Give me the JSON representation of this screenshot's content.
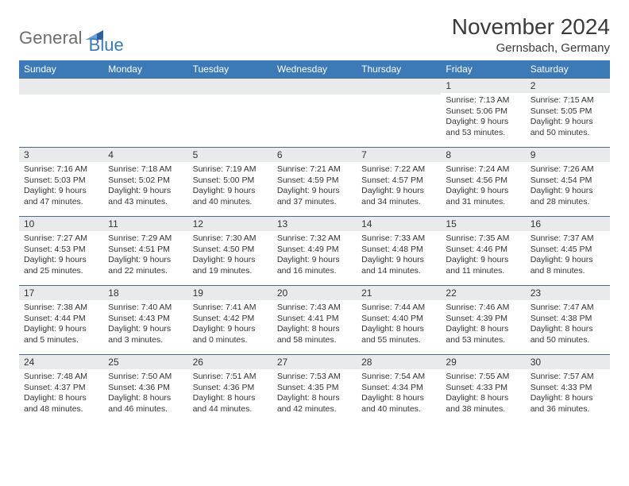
{
  "brand": {
    "left": "General",
    "right": "Blue"
  },
  "title": "November 2024",
  "subtitle": "Gernsbach, Germany",
  "calendar": {
    "header_bg": "#3b79b7",
    "header_fg": "#ffffff",
    "daynum_bg": "#e9eaec",
    "daynum_border": "#4f6a87",
    "day_names": [
      "Sunday",
      "Monday",
      "Tuesday",
      "Wednesday",
      "Thursday",
      "Friday",
      "Saturday"
    ],
    "weeks": [
      [
        {
          "day": "",
          "sunrise": "",
          "sunset": "",
          "daylight1": "",
          "daylight2": ""
        },
        {
          "day": "",
          "sunrise": "",
          "sunset": "",
          "daylight1": "",
          "daylight2": ""
        },
        {
          "day": "",
          "sunrise": "",
          "sunset": "",
          "daylight1": "",
          "daylight2": ""
        },
        {
          "day": "",
          "sunrise": "",
          "sunset": "",
          "daylight1": "",
          "daylight2": ""
        },
        {
          "day": "",
          "sunrise": "",
          "sunset": "",
          "daylight1": "",
          "daylight2": ""
        },
        {
          "day": "1",
          "sunrise": "Sunrise: 7:13 AM",
          "sunset": "Sunset: 5:06 PM",
          "daylight1": "Daylight: 9 hours",
          "daylight2": "and 53 minutes."
        },
        {
          "day": "2",
          "sunrise": "Sunrise: 7:15 AM",
          "sunset": "Sunset: 5:05 PM",
          "daylight1": "Daylight: 9 hours",
          "daylight2": "and 50 minutes."
        }
      ],
      [
        {
          "day": "3",
          "sunrise": "Sunrise: 7:16 AM",
          "sunset": "Sunset: 5:03 PM",
          "daylight1": "Daylight: 9 hours",
          "daylight2": "and 47 minutes."
        },
        {
          "day": "4",
          "sunrise": "Sunrise: 7:18 AM",
          "sunset": "Sunset: 5:02 PM",
          "daylight1": "Daylight: 9 hours",
          "daylight2": "and 43 minutes."
        },
        {
          "day": "5",
          "sunrise": "Sunrise: 7:19 AM",
          "sunset": "Sunset: 5:00 PM",
          "daylight1": "Daylight: 9 hours",
          "daylight2": "and 40 minutes."
        },
        {
          "day": "6",
          "sunrise": "Sunrise: 7:21 AM",
          "sunset": "Sunset: 4:59 PM",
          "daylight1": "Daylight: 9 hours",
          "daylight2": "and 37 minutes."
        },
        {
          "day": "7",
          "sunrise": "Sunrise: 7:22 AM",
          "sunset": "Sunset: 4:57 PM",
          "daylight1": "Daylight: 9 hours",
          "daylight2": "and 34 minutes."
        },
        {
          "day": "8",
          "sunrise": "Sunrise: 7:24 AM",
          "sunset": "Sunset: 4:56 PM",
          "daylight1": "Daylight: 9 hours",
          "daylight2": "and 31 minutes."
        },
        {
          "day": "9",
          "sunrise": "Sunrise: 7:26 AM",
          "sunset": "Sunset: 4:54 PM",
          "daylight1": "Daylight: 9 hours",
          "daylight2": "and 28 minutes."
        }
      ],
      [
        {
          "day": "10",
          "sunrise": "Sunrise: 7:27 AM",
          "sunset": "Sunset: 4:53 PM",
          "daylight1": "Daylight: 9 hours",
          "daylight2": "and 25 minutes."
        },
        {
          "day": "11",
          "sunrise": "Sunrise: 7:29 AM",
          "sunset": "Sunset: 4:51 PM",
          "daylight1": "Daylight: 9 hours",
          "daylight2": "and 22 minutes."
        },
        {
          "day": "12",
          "sunrise": "Sunrise: 7:30 AM",
          "sunset": "Sunset: 4:50 PM",
          "daylight1": "Daylight: 9 hours",
          "daylight2": "and 19 minutes."
        },
        {
          "day": "13",
          "sunrise": "Sunrise: 7:32 AM",
          "sunset": "Sunset: 4:49 PM",
          "daylight1": "Daylight: 9 hours",
          "daylight2": "and 16 minutes."
        },
        {
          "day": "14",
          "sunrise": "Sunrise: 7:33 AM",
          "sunset": "Sunset: 4:48 PM",
          "daylight1": "Daylight: 9 hours",
          "daylight2": "and 14 minutes."
        },
        {
          "day": "15",
          "sunrise": "Sunrise: 7:35 AM",
          "sunset": "Sunset: 4:46 PM",
          "daylight1": "Daylight: 9 hours",
          "daylight2": "and 11 minutes."
        },
        {
          "day": "16",
          "sunrise": "Sunrise: 7:37 AM",
          "sunset": "Sunset: 4:45 PM",
          "daylight1": "Daylight: 9 hours",
          "daylight2": "and 8 minutes."
        }
      ],
      [
        {
          "day": "17",
          "sunrise": "Sunrise: 7:38 AM",
          "sunset": "Sunset: 4:44 PM",
          "daylight1": "Daylight: 9 hours",
          "daylight2": "and 5 minutes."
        },
        {
          "day": "18",
          "sunrise": "Sunrise: 7:40 AM",
          "sunset": "Sunset: 4:43 PM",
          "daylight1": "Daylight: 9 hours",
          "daylight2": "and 3 minutes."
        },
        {
          "day": "19",
          "sunrise": "Sunrise: 7:41 AM",
          "sunset": "Sunset: 4:42 PM",
          "daylight1": "Daylight: 9 hours",
          "daylight2": "and 0 minutes."
        },
        {
          "day": "20",
          "sunrise": "Sunrise: 7:43 AM",
          "sunset": "Sunset: 4:41 PM",
          "daylight1": "Daylight: 8 hours",
          "daylight2": "and 58 minutes."
        },
        {
          "day": "21",
          "sunrise": "Sunrise: 7:44 AM",
          "sunset": "Sunset: 4:40 PM",
          "daylight1": "Daylight: 8 hours",
          "daylight2": "and 55 minutes."
        },
        {
          "day": "22",
          "sunrise": "Sunrise: 7:46 AM",
          "sunset": "Sunset: 4:39 PM",
          "daylight1": "Daylight: 8 hours",
          "daylight2": "and 53 minutes."
        },
        {
          "day": "23",
          "sunrise": "Sunrise: 7:47 AM",
          "sunset": "Sunset: 4:38 PM",
          "daylight1": "Daylight: 8 hours",
          "daylight2": "and 50 minutes."
        }
      ],
      [
        {
          "day": "24",
          "sunrise": "Sunrise: 7:48 AM",
          "sunset": "Sunset: 4:37 PM",
          "daylight1": "Daylight: 8 hours",
          "daylight2": "and 48 minutes."
        },
        {
          "day": "25",
          "sunrise": "Sunrise: 7:50 AM",
          "sunset": "Sunset: 4:36 PM",
          "daylight1": "Daylight: 8 hours",
          "daylight2": "and 46 minutes."
        },
        {
          "day": "26",
          "sunrise": "Sunrise: 7:51 AM",
          "sunset": "Sunset: 4:36 PM",
          "daylight1": "Daylight: 8 hours",
          "daylight2": "and 44 minutes."
        },
        {
          "day": "27",
          "sunrise": "Sunrise: 7:53 AM",
          "sunset": "Sunset: 4:35 PM",
          "daylight1": "Daylight: 8 hours",
          "daylight2": "and 42 minutes."
        },
        {
          "day": "28",
          "sunrise": "Sunrise: 7:54 AM",
          "sunset": "Sunset: 4:34 PM",
          "daylight1": "Daylight: 8 hours",
          "daylight2": "and 40 minutes."
        },
        {
          "day": "29",
          "sunrise": "Sunrise: 7:55 AM",
          "sunset": "Sunset: 4:33 PM",
          "daylight1": "Daylight: 8 hours",
          "daylight2": "and 38 minutes."
        },
        {
          "day": "30",
          "sunrise": "Sunrise: 7:57 AM",
          "sunset": "Sunset: 4:33 PM",
          "daylight1": "Daylight: 8 hours",
          "daylight2": "and 36 minutes."
        }
      ]
    ]
  }
}
